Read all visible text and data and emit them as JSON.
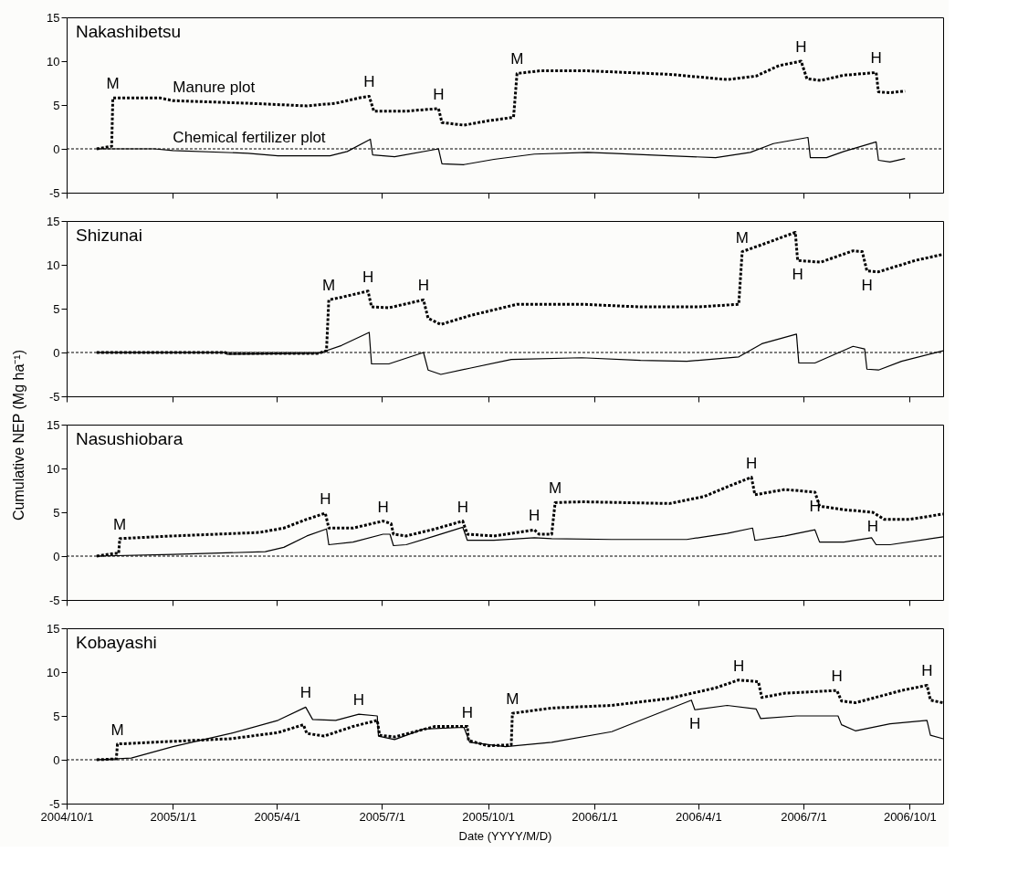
{
  "chart_data": [
    {
      "type": "line",
      "title": "Nakashibetsu",
      "xlim": [
        "2004-10-01",
        "2006-10-30"
      ],
      "xticks": [
        {
          "value": "2004-10-01",
          "label": null
        },
        {
          "value": "2005-01-01",
          "label": null
        },
        {
          "value": "2005-04-01",
          "label": null
        },
        {
          "value": "2005-07-01",
          "label": null
        },
        {
          "value": "2005-10-01",
          "label": null
        },
        {
          "value": "2006-01-01",
          "label": null
        },
        {
          "value": "2006-04-01",
          "label": null
        },
        {
          "value": "2006-07-01",
          "label": null
        },
        {
          "value": "2006-10-01",
          "label": null
        }
      ],
      "ylim": [
        -5,
        15
      ],
      "yticks": [
        -5,
        0,
        5,
        10,
        15
      ],
      "tick_labels": "y",
      "ref_lines": [
        {
          "axis": "y",
          "value": 0,
          "line_style": "dotted",
          "color": "#000000"
        }
      ],
      "annotations": [
        {
          "text": "M",
          "x": "2004-11-10",
          "y": 5.8
        },
        {
          "text": "H",
          "x": "2005-06-20",
          "y": 6.0
        },
        {
          "text": "H",
          "x": "2005-08-19",
          "y": 4.6
        },
        {
          "text": "M",
          "x": "2005-10-26",
          "y": 8.6
        },
        {
          "text": "H",
          "x": "2006-06-29",
          "y": 10.0
        },
        {
          "text": "H",
          "x": "2006-09-02",
          "y": 8.7
        }
      ],
      "series": [
        {
          "name": "Manure plot",
          "color": "#000000",
          "line_style": "dotted",
          "x": [
            "2004-10-27",
            "2004-11-09",
            "2004-11-10",
            "2004-12-21",
            "2005-01-01",
            "2005-03-07",
            "2005-04-27",
            "2005-05-22",
            "2005-06-11",
            "2005-06-20",
            "2005-06-24",
            "2005-07-22",
            "2005-08-19",
            "2005-08-22",
            "2005-09-10",
            "2005-10-01",
            "2005-10-23",
            "2005-10-26",
            "2005-11-15",
            "2005-12-26",
            "2006-03-07",
            "2006-04-26",
            "2006-05-21",
            "2006-06-10",
            "2006-06-29",
            "2006-07-04",
            "2006-07-16",
            "2006-08-05",
            "2006-09-02",
            "2006-09-04",
            "2006-09-14",
            "2006-09-27"
          ],
          "values": [
            0,
            0.3,
            5.8,
            5.8,
            5.5,
            5.2,
            4.9,
            5.2,
            5.8,
            6.0,
            4.3,
            4.3,
            4.6,
            3.0,
            2.7,
            3.2,
            3.6,
            8.6,
            8.9,
            8.9,
            8.5,
            7.9,
            8.3,
            9.5,
            10.0,
            8.0,
            7.8,
            8.4,
            8.7,
            6.5,
            6.4,
            6.6
          ]
        },
        {
          "name": "Chemical fertilizer plot",
          "color": "#000000",
          "line_style": "solid",
          "x": [
            "2004-10-27",
            "2004-12-16",
            "2005-01-01",
            "2005-03-07",
            "2005-04-02",
            "2005-05-17",
            "2005-06-01",
            "2005-06-21",
            "2005-06-23",
            "2005-07-12",
            "2005-08-19",
            "2005-08-22",
            "2005-09-10",
            "2005-10-06",
            "2005-11-10",
            "2005-12-26",
            "2006-01-16",
            "2006-03-07",
            "2006-04-16",
            "2006-05-16",
            "2006-06-05",
            "2006-07-05",
            "2006-07-07",
            "2006-07-21",
            "2006-08-05",
            "2006-09-02",
            "2006-09-04",
            "2006-09-14",
            "2006-09-27"
          ],
          "values": [
            0,
            0,
            -0.2,
            -0.5,
            -0.8,
            -0.8,
            -0.3,
            1.1,
            -0.7,
            -0.9,
            0.0,
            -1.7,
            -1.8,
            -1.2,
            -0.6,
            -0.4,
            -0.5,
            -0.8,
            -1.0,
            -0.4,
            0.6,
            1.3,
            -1.0,
            -1.0,
            -0.3,
            0.8,
            -1.3,
            -1.5,
            -1.1
          ]
        }
      ]
    },
    {
      "type": "line",
      "title": "Shizunai",
      "ylabel": "Cumulative NEP (Mg ha⁻¹)",
      "xlim": [
        "2004-10-01",
        "2006-10-30"
      ],
      "xticks": [
        {
          "value": "2004-10-01",
          "label": null
        },
        {
          "value": "2005-01-01",
          "label": null
        },
        {
          "value": "2005-04-01",
          "label": null
        },
        {
          "value": "2005-07-01",
          "label": null
        },
        {
          "value": "2005-10-01",
          "label": null
        },
        {
          "value": "2006-01-01",
          "label": null
        },
        {
          "value": "2006-04-01",
          "label": null
        },
        {
          "value": "2006-07-01",
          "label": null
        },
        {
          "value": "2006-10-01",
          "label": null
        }
      ],
      "ylim": [
        -5,
        15
      ],
      "yticks": [
        -5,
        0,
        5,
        10,
        15
      ],
      "tick_labels": "y",
      "ref_lines": [
        {
          "axis": "y",
          "value": 0,
          "line_style": "dotted",
          "color": "#000000"
        }
      ],
      "annotations": [
        {
          "text": "M",
          "x": "2005-05-16",
          "y": 6.0
        },
        {
          "text": "H",
          "x": "2005-06-19",
          "y": 7.0
        },
        {
          "text": "H",
          "x": "2005-08-06",
          "y": 6.0
        },
        {
          "text": "M",
          "x": "2006-05-09",
          "y": 11.5
        },
        {
          "text": "H",
          "x": "2006-06-26",
          "y": 10.5
        },
        {
          "text": "H",
          "x": "2006-08-25",
          "y": 9.3
        }
      ],
      "series": [
        {
          "color": "#000000",
          "line_style": "dotted",
          "x": [
            "2004-10-27",
            "2005-02-15",
            "2005-02-17",
            "2005-05-07",
            "2005-05-14",
            "2005-05-16",
            "2005-05-27",
            "2005-06-19",
            "2005-06-22",
            "2005-07-07",
            "2005-08-06",
            "2005-08-10",
            "2005-08-21",
            "2005-09-15",
            "2005-10-26",
            "2005-12-21",
            "2006-02-10",
            "2006-04-01",
            "2006-05-06",
            "2006-05-09",
            "2006-05-26",
            "2006-06-24",
            "2006-06-26",
            "2006-07-16",
            "2006-08-13",
            "2006-08-21",
            "2006-08-25",
            "2006-09-04",
            "2006-10-06",
            "2006-10-30"
          ],
          "values": [
            0,
            0,
            -0.1,
            -0.1,
            0.2,
            6.0,
            6.3,
            7.0,
            5.2,
            5.1,
            6.0,
            3.9,
            3.2,
            4.2,
            5.5,
            5.5,
            5.2,
            5.2,
            5.5,
            11.5,
            12.3,
            13.7,
            10.5,
            10.3,
            11.6,
            11.5,
            9.3,
            9.2,
            10.5,
            11.2
          ]
        },
        {
          "color": "#000000",
          "line_style": "solid",
          "x": [
            "2004-10-27",
            "2005-02-15",
            "2005-02-17",
            "2005-05-07",
            "2005-05-27",
            "2005-06-20",
            "2005-06-22",
            "2005-07-07",
            "2005-08-06",
            "2005-08-10",
            "2005-08-21",
            "2005-09-15",
            "2005-10-21",
            "2005-12-21",
            "2006-02-10",
            "2006-03-22",
            "2006-05-06",
            "2006-05-26",
            "2006-06-25",
            "2006-06-27",
            "2006-07-11",
            "2006-08-13",
            "2006-08-23",
            "2006-08-25",
            "2006-09-04",
            "2006-09-24",
            "2006-10-30"
          ],
          "values": [
            0,
            0,
            -0.2,
            -0.1,
            0.8,
            2.3,
            -1.3,
            -1.3,
            0.0,
            -2.0,
            -2.5,
            -1.8,
            -0.8,
            -0.6,
            -0.9,
            -1.0,
            -0.5,
            1.0,
            2.1,
            -1.2,
            -1.2,
            0.7,
            0.4,
            -1.9,
            -2.0,
            -1.0,
            0.2
          ]
        }
      ]
    },
    {
      "type": "line",
      "title": "Nasushiobara",
      "xlim": [
        "2004-10-01",
        "2006-10-30"
      ],
      "xticks": [
        {
          "value": "2004-10-01",
          "label": null
        },
        {
          "value": "2005-01-01",
          "label": null
        },
        {
          "value": "2005-04-01",
          "label": null
        },
        {
          "value": "2005-07-01",
          "label": null
        },
        {
          "value": "2005-10-01",
          "label": null
        },
        {
          "value": "2006-01-01",
          "label": null
        },
        {
          "value": "2006-04-01",
          "label": null
        },
        {
          "value": "2006-07-01",
          "label": null
        },
        {
          "value": "2006-10-01",
          "label": null
        }
      ],
      "ylim": [
        -5,
        15
      ],
      "yticks": [
        -5,
        0,
        5,
        10,
        15
      ],
      "tick_labels": "y",
      "ref_lines": [
        {
          "axis": "y",
          "value": 0,
          "line_style": "dotted",
          "color": "#000000"
        }
      ],
      "annotations": [
        {
          "text": "M",
          "x": "2004-11-16",
          "y": 2.0
        },
        {
          "text": "H",
          "x": "2005-05-13",
          "y": 4.9
        },
        {
          "text": "H",
          "x": "2005-07-02",
          "y": 4.0
        },
        {
          "text": "H",
          "x": "2005-09-09",
          "y": 4.0
        },
        {
          "text": "H",
          "x": "2005-11-10",
          "y": 3.0
        },
        {
          "text": "M",
          "x": "2005-11-28",
          "y": 6.1
        },
        {
          "text": "H",
          "x": "2006-05-17",
          "y": 9.0
        },
        {
          "text": "H",
          "x": "2006-07-11",
          "y": 7.3
        },
        {
          "text": "H",
          "x": "2006-08-30",
          "y": 5.0
        }
      ],
      "series": [
        {
          "color": "#000000",
          "line_style": "dotted",
          "x": [
            "2004-10-27",
            "2004-11-11",
            "2004-11-15",
            "2004-11-16",
            "2005-01-01",
            "2005-03-17",
            "2005-04-07",
            "2005-04-27",
            "2005-05-13",
            "2005-05-16",
            "2005-06-06",
            "2005-07-02",
            "2005-07-09",
            "2005-07-11",
            "2005-07-22",
            "2005-08-16",
            "2005-09-09",
            "2005-09-13",
            "2005-10-06",
            "2005-11-10",
            "2005-11-14",
            "2005-11-25",
            "2005-11-28",
            "2005-12-21",
            "2006-03-07",
            "2006-04-06",
            "2006-04-26",
            "2006-05-17",
            "2006-05-20",
            "2006-06-15",
            "2006-07-11",
            "2006-07-15",
            "2006-08-05",
            "2006-08-30",
            "2006-09-09",
            "2006-10-01",
            "2006-10-30"
          ],
          "values": [
            0,
            0.3,
            0.3,
            2.0,
            2.3,
            2.7,
            3.2,
            4.2,
            4.9,
            3.2,
            3.2,
            4.0,
            3.7,
            2.5,
            2.3,
            3.1,
            4.0,
            2.5,
            2.3,
            3.0,
            2.5,
            2.5,
            6.1,
            6.2,
            6.0,
            6.8,
            7.9,
            9.0,
            7.0,
            7.6,
            7.3,
            5.7,
            5.3,
            5.0,
            4.2,
            4.2,
            4.8
          ]
        },
        {
          "color": "#000000",
          "line_style": "solid",
          "x": [
            "2004-10-27",
            "2005-01-01",
            "2005-03-22",
            "2005-04-07",
            "2005-04-27",
            "2005-05-14",
            "2005-05-16",
            "2005-06-06",
            "2005-07-02",
            "2005-07-08",
            "2005-07-11",
            "2005-07-22",
            "2005-08-16",
            "2005-09-09",
            "2005-09-13",
            "2005-10-06",
            "2005-11-10",
            "2005-11-25",
            "2006-01-16",
            "2006-03-22",
            "2006-04-26",
            "2006-05-18",
            "2006-05-20",
            "2006-06-15",
            "2006-07-11",
            "2006-07-15",
            "2006-08-05",
            "2006-08-29",
            "2006-09-02",
            "2006-09-14",
            "2006-10-30"
          ],
          "values": [
            0,
            0.2,
            0.5,
            1.0,
            2.3,
            3.1,
            1.3,
            1.6,
            2.5,
            2.5,
            1.2,
            1.3,
            2.3,
            3.3,
            1.8,
            1.8,
            2.1,
            2.0,
            1.9,
            1.9,
            2.6,
            3.2,
            1.8,
            2.3,
            3.0,
            1.6,
            1.6,
            2.1,
            1.3,
            1.3,
            2.2
          ]
        }
      ]
    },
    {
      "type": "line",
      "title": "Kobayashi",
      "xlabel": "Date (YYYY/M/D)",
      "xlim": [
        "2004-10-01",
        "2006-10-30"
      ],
      "xticks": [
        {
          "value": "2004-10-01",
          "label": "2004/10/1"
        },
        {
          "value": "2005-01-01",
          "label": "2005/1/1"
        },
        {
          "value": "2005-04-01",
          "label": "2005/4/1"
        },
        {
          "value": "2005-07-01",
          "label": "2005/7/1"
        },
        {
          "value": "2005-10-01",
          "label": "2005/10/1"
        },
        {
          "value": "2006-01-01",
          "label": "2006/1/1"
        },
        {
          "value": "2006-04-01",
          "label": "2006/4/1"
        },
        {
          "value": "2006-07-01",
          "label": "2006/7/1"
        },
        {
          "value": "2006-10-01",
          "label": "2006/10/1"
        }
      ],
      "ylim": [
        -5,
        15
      ],
      "yticks": [
        -5,
        0,
        5,
        10,
        15
      ],
      "ref_lines": [
        {
          "axis": "y",
          "value": 0,
          "line_style": "dotted",
          "color": "#000000"
        }
      ],
      "annotations": [
        {
          "text": "M",
          "x": "2004-11-14",
          "y": 1.8
        },
        {
          "text": "H",
          "x": "2005-04-26",
          "y": 6.0
        },
        {
          "text": "H",
          "x": "2005-06-11",
          "y": 5.2
        },
        {
          "text": "H",
          "x": "2005-09-13",
          "y": 3.8
        },
        {
          "text": "M",
          "x": "2005-10-22",
          "y": 5.3
        },
        {
          "text": "H",
          "x": "2006-03-29",
          "y": 5.7
        },
        {
          "text": "H",
          "x": "2006-05-06",
          "y": 9.1
        },
        {
          "text": "H",
          "x": "2006-07-30",
          "y": 7.9
        },
        {
          "text": "H",
          "x": "2006-10-16",
          "y": 8.5
        }
      ],
      "series": [
        {
          "color": "#000000",
          "line_style": "dotted",
          "x": [
            "2004-10-27",
            "2004-11-13",
            "2004-11-14",
            "2005-01-01",
            "2005-02-20",
            "2005-04-02",
            "2005-04-24",
            "2005-04-27",
            "2005-05-12",
            "2005-06-06",
            "2005-06-27",
            "2005-06-29",
            "2005-07-12",
            "2005-08-16",
            "2005-09-13",
            "2005-09-14",
            "2005-10-01",
            "2005-10-21",
            "2005-10-22",
            "2005-11-25",
            "2006-01-16",
            "2006-03-07",
            "2006-04-16",
            "2006-05-06",
            "2006-05-23",
            "2006-05-26",
            "2006-06-15",
            "2006-07-30",
            "2006-08-03",
            "2006-08-15",
            "2006-09-24",
            "2006-10-16",
            "2006-10-19",
            "2006-10-30"
          ],
          "values": [
            0,
            0.1,
            1.8,
            2.1,
            2.4,
            3.1,
            4.0,
            3.0,
            2.7,
            3.8,
            4.5,
            2.8,
            2.6,
            3.8,
            3.8,
            2.2,
            1.6,
            1.7,
            5.3,
            5.9,
            6.2,
            7.0,
            8.2,
            9.1,
            8.9,
            7.1,
            7.6,
            7.9,
            6.7,
            6.5,
            7.9,
            8.5,
            6.8,
            6.5
          ]
        },
        {
          "color": "#000000",
          "line_style": "solid",
          "x": [
            "2004-10-27",
            "2004-11-26",
            "2005-01-01",
            "2005-02-20",
            "2005-04-02",
            "2005-04-26",
            "2005-05-02",
            "2005-05-22",
            "2005-06-11",
            "2005-06-27",
            "2005-06-28",
            "2005-07-12",
            "2005-08-06",
            "2005-09-10",
            "2005-09-15",
            "2005-10-16",
            "2005-11-25",
            "2006-01-16",
            "2006-03-26",
            "2006-03-29",
            "2006-04-26",
            "2006-05-21",
            "2006-05-25",
            "2006-06-25",
            "2006-07-31",
            "2006-08-03",
            "2006-08-15",
            "2006-09-14",
            "2006-10-16",
            "2006-10-19",
            "2006-10-30"
          ],
          "values": [
            0,
            0.2,
            1.5,
            3.0,
            4.5,
            6.0,
            4.6,
            4.5,
            5.2,
            5.0,
            2.7,
            2.3,
            3.5,
            3.7,
            2.0,
            1.5,
            2.0,
            3.2,
            6.8,
            5.7,
            6.2,
            5.8,
            4.7,
            5.0,
            5.0,
            4.0,
            3.3,
            4.1,
            4.5,
            2.8,
            2.4
          ]
        }
      ]
    }
  ]
}
